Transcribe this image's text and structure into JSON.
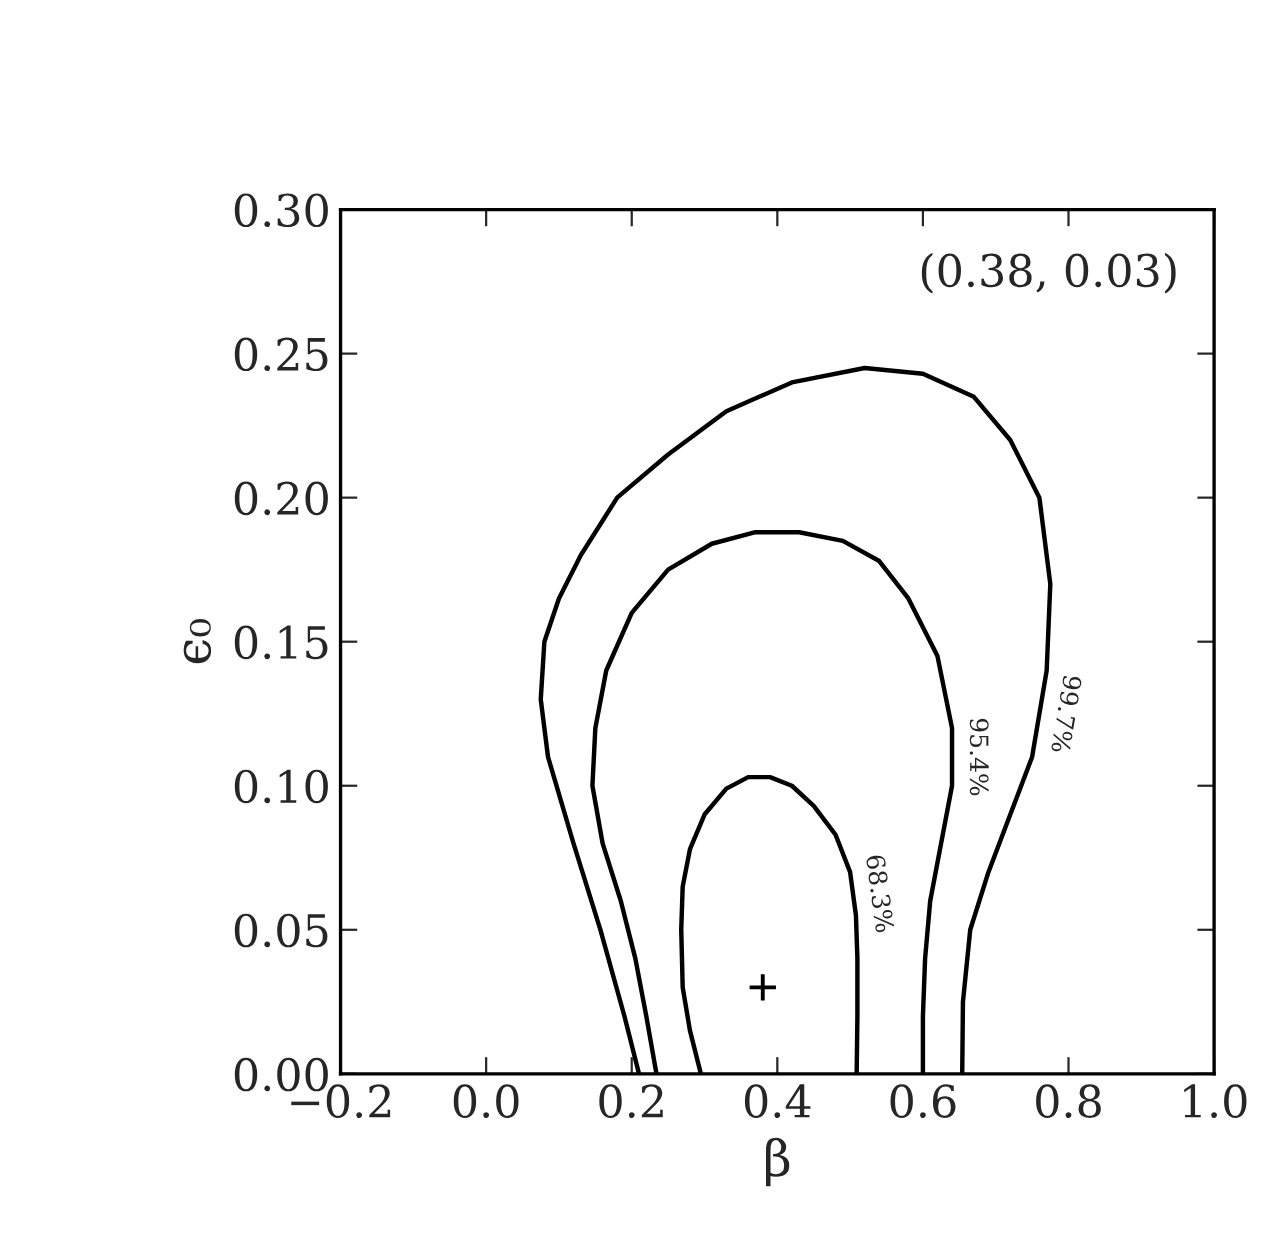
{
  "chart_data": {
    "type": "line",
    "xlabel": "β",
    "ylabel": "ϵ₀",
    "xlim": [
      -0.2,
      1.0
    ],
    "ylim": [
      0.0,
      0.3
    ],
    "xticks": [
      {
        "value": -0.2,
        "label": "−0.2"
      },
      {
        "value": 0.0,
        "label": "0.0"
      },
      0.2,
      0.4,
      0.6,
      0.8,
      {
        "value": 1.0,
        "label": "1.0"
      }
    ],
    "yticks": [
      {
        "value": 0.0,
        "label": "0.00"
      },
      0.05,
      {
        "value": 0.1,
        "label": "0.10"
      },
      0.15,
      {
        "value": 0.2,
        "label": "0.20"
      },
      0.25,
      {
        "value": 0.3,
        "label": "0.30"
      }
    ],
    "grid": false,
    "legend": false,
    "annotations": [
      "(0.38, 0.03)"
    ],
    "series": [
      {
        "name": "99.7%",
        "color": "#000000",
        "marker": "none",
        "line_style": "solid",
        "x": [
          0.21,
          0.19,
          0.157,
          0.12,
          0.085,
          0.075,
          0.08,
          0.1,
          0.13,
          0.18,
          0.25,
          0.33,
          0.42,
          0.52,
          0.6,
          0.67,
          0.72,
          0.76,
          0.775,
          0.77,
          0.75,
          0.72,
          0.69,
          0.665,
          0.655,
          0.654
        ],
        "values": [
          0,
          0.02,
          0.05,
          0.08,
          0.11,
          0.13,
          0.15,
          0.165,
          0.18,
          0.2,
          0.215,
          0.23,
          0.24,
          0.245,
          0.243,
          0.235,
          0.22,
          0.2,
          0.17,
          0.14,
          0.11,
          0.09,
          0.07,
          0.05,
          0.025,
          0
        ]
      },
      {
        "name": "95.4%",
        "color": "#000000",
        "marker": "none",
        "line_style": "solid",
        "x": [
          0.234,
          0.22,
          0.205,
          0.185,
          0.16,
          0.146,
          0.15,
          0.165,
          0.2,
          0.25,
          0.31,
          0.37,
          0.43,
          0.49,
          0.54,
          0.58,
          0.62,
          0.64,
          0.64,
          0.625,
          0.61,
          0.603,
          0.6,
          0.6
        ],
        "values": [
          0,
          0.02,
          0.04,
          0.06,
          0.08,
          0.1,
          0.12,
          0.14,
          0.16,
          0.175,
          0.184,
          0.188,
          0.188,
          0.185,
          0.178,
          0.165,
          0.145,
          0.12,
          0.1,
          0.08,
          0.06,
          0.04,
          0.02,
          0
        ]
      },
      {
        "name": "68.3%",
        "color": "#000000",
        "marker": "none",
        "line_style": "solid",
        "x": [
          0.295,
          0.28,
          0.27,
          0.268,
          0.27,
          0.28,
          0.3,
          0.33,
          0.36,
          0.39,
          0.42,
          0.45,
          0.48,
          0.5,
          0.508,
          0.51,
          0.51,
          0.509
        ],
        "values": [
          0,
          0.015,
          0.03,
          0.05,
          0.065,
          0.078,
          0.09,
          0.099,
          0.103,
          0.103,
          0.1,
          0.093,
          0.083,
          0.07,
          0.055,
          0.04,
          0.02,
          0
        ]
      },
      {
        "type": "scatter",
        "color": "#000000",
        "marker": "cross",
        "x": [
          0.38
        ],
        "values": [
          0.03
        ]
      }
    ]
  }
}
